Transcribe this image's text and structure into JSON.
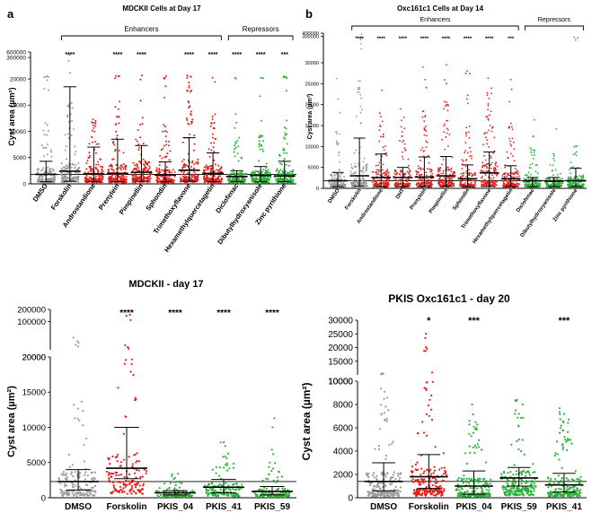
{
  "colors": {
    "gray": "#9a9a9a",
    "red": "#e0201b",
    "green": "#2fae3a",
    "black": "#000000"
  },
  "chart_data": [
    {
      "panel": "a",
      "title": "MDCKII Cells at Day 17",
      "type": "scatter",
      "ylabel": "Cyst area (µm²)",
      "ylim": [
        0,
        600000
      ],
      "yticks": [
        "0",
        "5000",
        "10000",
        "15000",
        "20000",
        "300000",
        "600000"
      ],
      "groups": [
        {
          "label": "Enhancers",
          "from": 2,
          "to": 8
        },
        {
          "label": "Repressors",
          "from": 9,
          "to": 11
        }
      ],
      "categories": [
        "DMSO",
        "Forskolin",
        "Androstandione",
        "Prenylein",
        "Pimpinellin",
        "Sphondin",
        "Trimethoxyflavone",
        "Hexamethylquercetagetin",
        "Diclofenac",
        "Dibutylhydroxyanisole",
        "Zinc pyrithione"
      ],
      "significance": [
        "",
        "****",
        "",
        "****",
        "****",
        "",
        "****",
        "****",
        "****",
        "****",
        "***"
      ],
      "color_keys": [
        "gray",
        "gray",
        "red",
        "red",
        "red",
        "red",
        "red",
        "red",
        "green",
        "green",
        "green"
      ],
      "median": [
        1800,
        2400,
        1900,
        2000,
        2200,
        1700,
        2600,
        2000,
        1400,
        1600,
        1500
      ],
      "q1": [
        1000,
        1300,
        1100,
        1100,
        1200,
        1000,
        1400,
        1100,
        900,
        1000,
        900
      ],
      "q3": [
        2900,
        4000,
        3300,
        3700,
        4300,
        3000,
        4700,
        3600,
        2100,
        2500,
        2700
      ],
      "spread_low": [
        400,
        500,
        400,
        400,
        500,
        400,
        500,
        400,
        400,
        400,
        400
      ],
      "spread_high": [
        4300,
        18500,
        7000,
        8500,
        7300,
        4200,
        8800,
        5900,
        2500,
        3300,
        4300
      ],
      "max_point": [
        31000,
        500000,
        31000,
        31000,
        31000,
        31000,
        31000,
        31000,
        24000,
        28000,
        28000
      ],
      "ref_line": 1800
    },
    {
      "panel": "b",
      "title": "Oxc161c1 Cells at Day 14",
      "type": "scatter",
      "ylabel": "Cyst area (µm²)",
      "ylim": [
        0,
        400000
      ],
      "yticks": [
        "0",
        "5000",
        "10000",
        "15000",
        "20000",
        "25000",
        "30000",
        "300000",
        "400000"
      ],
      "groups": [
        {
          "label": "Enhancers",
          "from": 2,
          "to": 9
        },
        {
          "label": "Repressors",
          "from": 10,
          "to": 12
        }
      ],
      "categories": [
        "DMSO",
        "Forskolin",
        "Androstandione",
        "DHT",
        "Prenylein",
        "Pimpinellin",
        "Sphondin",
        "Trimethoxyflavone",
        "Hexamethylquercetagetin",
        "Diclofenac",
        "Dibutylhydroxyanisole",
        "Zinc pyrithione"
      ],
      "significance": [
        "",
        "****",
        "****",
        "****",
        "****",
        "****",
        "****",
        "****",
        "***",
        "",
        "",
        ""
      ],
      "color_keys": [
        "gray",
        "gray",
        "red",
        "red",
        "red",
        "red",
        "red",
        "red",
        "red",
        "green",
        "green",
        "green"
      ],
      "median": [
        1800,
        3000,
        2600,
        2600,
        2700,
        3000,
        2300,
        3700,
        2300,
        1800,
        1700,
        1800
      ],
      "q1": [
        1000,
        1600,
        1300,
        1300,
        1400,
        1600,
        1100,
        1900,
        1200,
        1000,
        900,
        900
      ],
      "q3": [
        3500,
        6500,
        4500,
        4300,
        4800,
        5200,
        3800,
        6200,
        4000,
        2500,
        2400,
        3000
      ],
      "spread_low": [
        400,
        500,
        400,
        400,
        400,
        500,
        400,
        500,
        400,
        400,
        400,
        400
      ],
      "spread_high": [
        3800,
        12000,
        8200,
        5000,
        7500,
        7600,
        5600,
        8700,
        5400,
        2600,
        2600,
        4800
      ],
      "max_point": [
        30000,
        400000,
        30000,
        30000,
        30000,
        30000,
        30000,
        30000,
        30000,
        20000,
        22000,
        300000
      ],
      "ref_line": 1800
    },
    {
      "panel": "c",
      "title": "MDCKII - day 17",
      "type": "scatter",
      "ylabel": "Cyst area (µm²)",
      "ylim": [
        0,
        200000
      ],
      "yticks": [
        "0",
        "5000",
        "10000",
        "15000",
        "20000",
        "20000",
        "100000",
        "200000"
      ],
      "categories": [
        "DMSO",
        "Forskolin",
        "PKIS_04",
        "PKIS_41",
        "PKIS_59"
      ],
      "significance": [
        "",
        "****",
        "****",
        "****",
        "****"
      ],
      "color_keys": [
        "gray",
        "red",
        "green",
        "green",
        "green"
      ],
      "median": [
        2300,
        4200,
        700,
        1500,
        900
      ],
      "q1": [
        1200,
        2700,
        400,
        800,
        500
      ],
      "q3": [
        3700,
        6500,
        1000,
        2100,
        1300
      ],
      "spread_low": [
        1100,
        2700,
        400,
        700,
        400
      ],
      "spread_high": [
        4000,
        10000,
        1000,
        2600,
        1600
      ],
      "max_point": [
        40000,
        150000,
        3500,
        11000,
        11500
      ],
      "ref_line": 2300
    },
    {
      "panel": "d",
      "title": "PKIS Oxc161c1 - day 20",
      "type": "scatter",
      "ylabel": "Cyst area (µm²)",
      "ylim": [
        0,
        30000
      ],
      "yticks": [
        "0",
        "2000",
        "4000",
        "6000",
        "8000",
        "10000",
        "10000",
        "15000",
        "20000",
        "25000",
        "30000"
      ],
      "categories": [
        "DMSO",
        "Forskolin",
        "PKIS_04",
        "PKIS_59",
        "PKIS_41"
      ],
      "significance": [
        "",
        "*",
        "***",
        "",
        "***"
      ],
      "color_keys": [
        "gray",
        "red",
        "green",
        "green",
        "green"
      ],
      "median": [
        1400,
        1800,
        1000,
        1700,
        1100
      ],
      "q1": [
        600,
        800,
        400,
        1000,
        500
      ],
      "q3": [
        2200,
        2800,
        1700,
        2300,
        1800
      ],
      "spread_low": [
        600,
        800,
        300,
        1000,
        500
      ],
      "spread_high": [
        3000,
        3700,
        2300,
        2600,
        2100
      ],
      "max_point": [
        13000,
        28000,
        10000,
        8500,
        8000
      ],
      "ref_line": 1400
    }
  ]
}
